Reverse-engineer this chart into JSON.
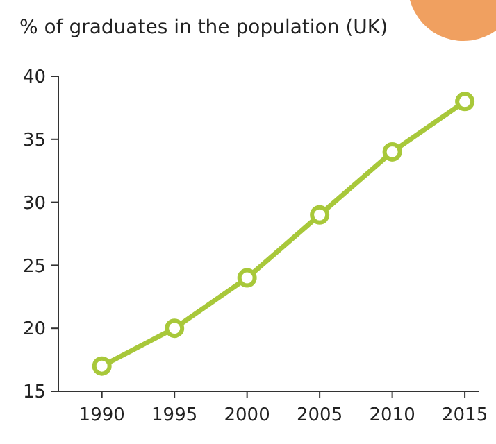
{
  "chart_data": {
    "type": "line",
    "title": "% of graduates in the population (UK)",
    "x": [
      1990,
      1995,
      2000,
      2005,
      2010,
      2015
    ],
    "series": [
      {
        "color": "#a8c83a",
        "values": [
          17,
          20,
          24,
          29,
          34,
          38
        ]
      }
    ],
    "xlim": [
      1987,
      2016
    ],
    "xticks": [
      1990,
      1995,
      2000,
      2005,
      2010,
      2015
    ],
    "ylim": [
      15,
      40
    ],
    "yticks": [
      15,
      20,
      25,
      30,
      35,
      40
    ],
    "grid": false,
    "marker": "circle",
    "line_style": "solid"
  }
}
